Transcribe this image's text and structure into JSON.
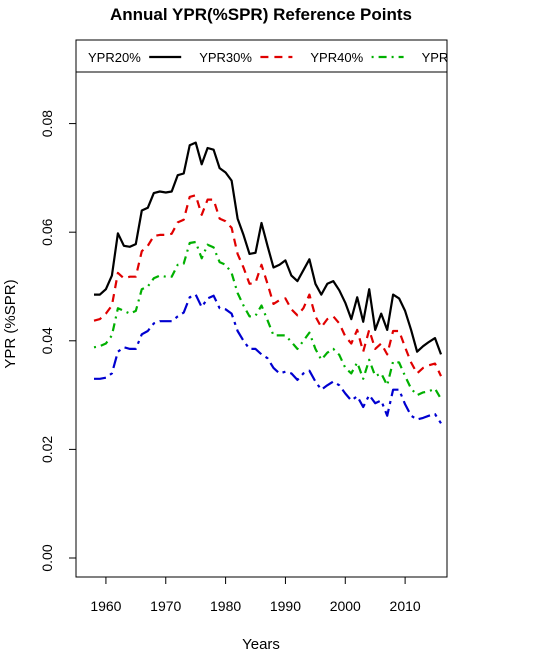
{
  "chart_data": {
    "type": "line",
    "title": "Annual YPR(%SPR) Reference Points",
    "xlabel": "Years",
    "ylabel": "YPR (%SPR)",
    "xlim": [
      1955,
      2017
    ],
    "ylim": [
      -0.0035,
      0.0895
    ],
    "x_ticks": [
      1960,
      1970,
      1980,
      1990,
      2000,
      2010
    ],
    "y_ticks": [
      0.0,
      0.02,
      0.04,
      0.06,
      0.08
    ],
    "y_tick_labels": [
      "0.00",
      "0.02",
      "0.04",
      "0.06",
      "0.08"
    ],
    "legend_placement": "top, horizontal, clipped at right edge",
    "legend_labels": [
      "YPR20%",
      "YPR30%",
      "YPR40%",
      "YPR"
    ],
    "x": [
      1958,
      1959,
      1960,
      1961,
      1962,
      1963,
      1964,
      1965,
      1966,
      1967,
      1968,
      1969,
      1970,
      1971,
      1972,
      1973,
      1974,
      1975,
      1976,
      1977,
      1978,
      1979,
      1980,
      1981,
      1982,
      1983,
      1984,
      1985,
      1986,
      1987,
      1988,
      1989,
      1990,
      1991,
      1992,
      1993,
      1994,
      1995,
      1996,
      1997,
      1998,
      1999,
      2000,
      2001,
      2002,
      2003,
      2004,
      2005,
      2006,
      2007,
      2008,
      2009,
      2010,
      2011,
      2012,
      2013,
      2014,
      2015,
      2016
    ],
    "series": [
      {
        "name": "YPR20%",
        "color": "#000000",
        "dash": "solid",
        "values": [
          0.0485,
          0.0485,
          0.0495,
          0.052,
          0.0598,
          0.0575,
          0.0573,
          0.0578,
          0.064,
          0.0645,
          0.0672,
          0.0675,
          0.0673,
          0.0675,
          0.0705,
          0.0708,
          0.076,
          0.0765,
          0.0725,
          0.0755,
          0.0752,
          0.0718,
          0.071,
          0.0695,
          0.0625,
          0.0595,
          0.056,
          0.0562,
          0.0617,
          0.0575,
          0.0535,
          0.054,
          0.0548,
          0.052,
          0.051,
          0.053,
          0.055,
          0.0505,
          0.0485,
          0.0505,
          0.051,
          0.0493,
          0.047,
          0.044,
          0.048,
          0.0435,
          0.0495,
          0.042,
          0.045,
          0.042,
          0.0485,
          0.0478,
          0.0455,
          0.042,
          0.038,
          0.039,
          0.0398,
          0.0405,
          0.0375
        ]
      },
      {
        "name": "YPR30%",
        "color": "#e00000",
        "dash": "dashed",
        "values": [
          0.0437,
          0.044,
          0.045,
          0.0465,
          0.0525,
          0.0515,
          0.0518,
          0.0518,
          0.0565,
          0.0575,
          0.0593,
          0.0595,
          0.0595,
          0.0597,
          0.0618,
          0.0623,
          0.0665,
          0.0668,
          0.0632,
          0.066,
          0.066,
          0.0625,
          0.062,
          0.0608,
          0.056,
          0.0535,
          0.0505,
          0.0507,
          0.054,
          0.0505,
          0.0468,
          0.0475,
          0.0478,
          0.0458,
          0.0447,
          0.046,
          0.0485,
          0.0445,
          0.0425,
          0.044,
          0.0445,
          0.0432,
          0.0408,
          0.0395,
          0.042,
          0.038,
          0.042,
          0.0385,
          0.0395,
          0.0375,
          0.0418,
          0.0418,
          0.0388,
          0.036,
          0.034,
          0.035,
          0.0355,
          0.0358,
          0.0335
        ]
      },
      {
        "name": "YPR40%",
        "color": "#00b000",
        "dash": "dotdash",
        "values": [
          0.0388,
          0.039,
          0.0395,
          0.041,
          0.046,
          0.0455,
          0.045,
          0.0455,
          0.0495,
          0.05,
          0.0515,
          0.052,
          0.0518,
          0.0518,
          0.054,
          0.0542,
          0.058,
          0.0582,
          0.0552,
          0.0577,
          0.0572,
          0.0545,
          0.054,
          0.0525,
          0.0488,
          0.0465,
          0.0445,
          0.0446,
          0.0465,
          0.0438,
          0.041,
          0.041,
          0.041,
          0.0398,
          0.0385,
          0.04,
          0.0415,
          0.0385,
          0.0365,
          0.0378,
          0.0385,
          0.0374,
          0.035,
          0.034,
          0.036,
          0.033,
          0.0365,
          0.0335,
          0.034,
          0.0318,
          0.0362,
          0.036,
          0.0335,
          0.0312,
          0.03,
          0.0305,
          0.0307,
          0.0312,
          0.0293
        ]
      },
      {
        "name": "YPR",
        "color": "#0000d0",
        "dash": "longdash-dot",
        "values": [
          0.033,
          0.033,
          0.0332,
          0.034,
          0.038,
          0.0388,
          0.0385,
          0.0385,
          0.0412,
          0.0418,
          0.0432,
          0.0436,
          0.0436,
          0.0436,
          0.0445,
          0.0452,
          0.048,
          0.0485,
          0.0462,
          0.0478,
          0.0483,
          0.046,
          0.0458,
          0.045,
          0.0418,
          0.04,
          0.0385,
          0.0385,
          0.0375,
          0.0368,
          0.035,
          0.034,
          0.0343,
          0.034,
          0.0328,
          0.034,
          0.0345,
          0.0325,
          0.031,
          0.0318,
          0.0325,
          0.0318,
          0.0303,
          0.029,
          0.0298,
          0.0278,
          0.03,
          0.0285,
          0.029,
          0.0262,
          0.031,
          0.031,
          0.0283,
          0.0262,
          0.0255,
          0.0258,
          0.0262,
          0.0265,
          0.0248
        ]
      }
    ]
  }
}
